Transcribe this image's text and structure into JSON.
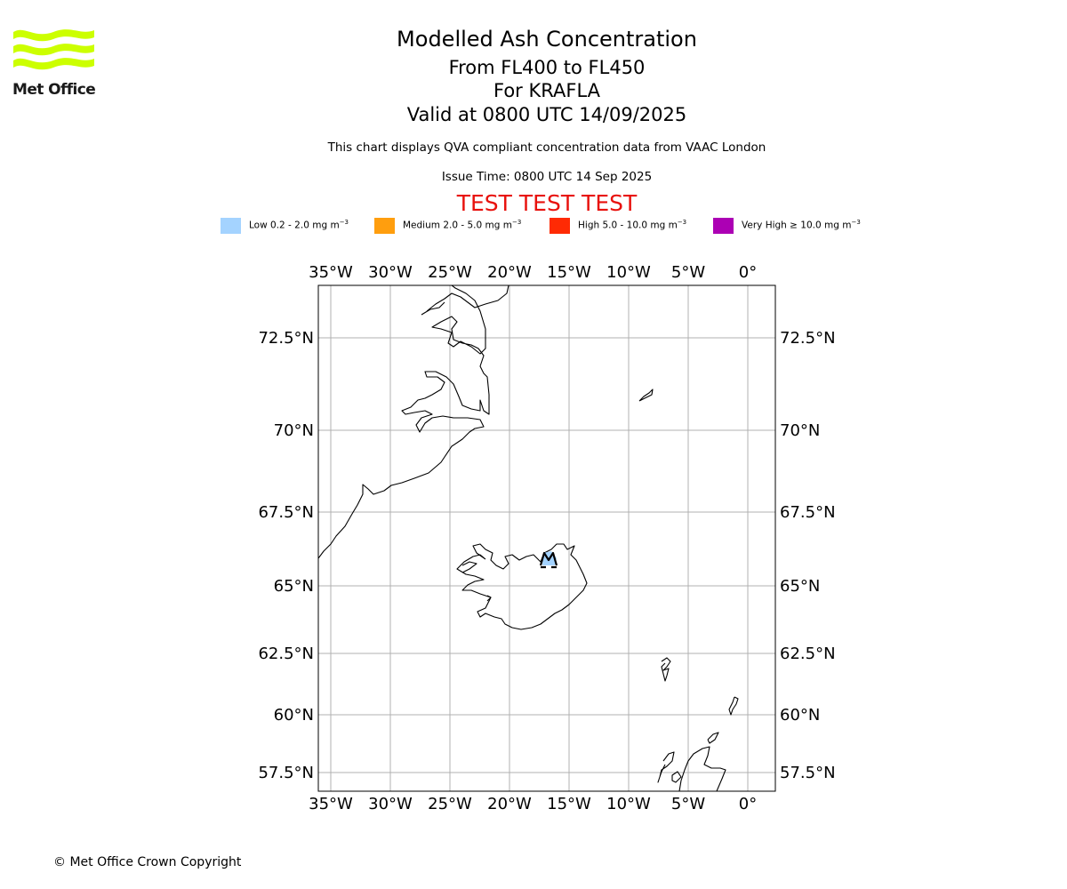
{
  "logo": {
    "text": "Met Office",
    "color": "#ccff00"
  },
  "title": "Modelled Ash Concentration",
  "subtitle_levels": "From FL400 to FL450",
  "subtitle_volcano": "For KRAFLA",
  "subtitle_valid": "Valid at 0800 UTC 14/09/2025",
  "description": "This chart displays QVA compliant concentration data from VAAC London",
  "issue_time": "Issue Time: 0800 UTC 14 Sep 2025",
  "test_banner": "TEST TEST TEST",
  "test_color": "#e8110d",
  "legend": [
    {
      "name": "Low",
      "range": "Low 0.2 - 2.0 mg m",
      "unit_exp": "−3",
      "color": "#a4d3ff"
    },
    {
      "name": "Medium",
      "range": "Medium 2.0 - 5.0 mg m",
      "unit_exp": "−3",
      "color": "#ff9e0e"
    },
    {
      "name": "High",
      "range": "High 5.0 - 10.0 mg m",
      "unit_exp": "−3",
      "color": "#ff2a04"
    },
    {
      "name": "Very High",
      "range": "Very High  ≥  10.0 mg m",
      "unit_exp": "−3",
      "color": "#ac00b4"
    }
  ],
  "map": {
    "lon_range": [
      -36.1,
      2.2
    ],
    "lat_range": [
      56.7,
      74.2
    ],
    "lon_ticks": [
      "35°W",
      "30°W",
      "25°W",
      "20°W",
      "15°W",
      "10°W",
      "5°W",
      "0°"
    ],
    "lat_ticks": [
      "72.5°N",
      "70°N",
      "67.5°N",
      "65°N",
      "62.5°N",
      "60°N",
      "57.5°N"
    ],
    "gridlines": true,
    "coastline_color": "#000000",
    "grid_color": "#b0b0b0",
    "ash_areas": [
      {
        "level": "Low",
        "lon": -16.8,
        "lat": 65.73
      }
    ]
  },
  "copyright": "© Met Office Crown Copyright"
}
